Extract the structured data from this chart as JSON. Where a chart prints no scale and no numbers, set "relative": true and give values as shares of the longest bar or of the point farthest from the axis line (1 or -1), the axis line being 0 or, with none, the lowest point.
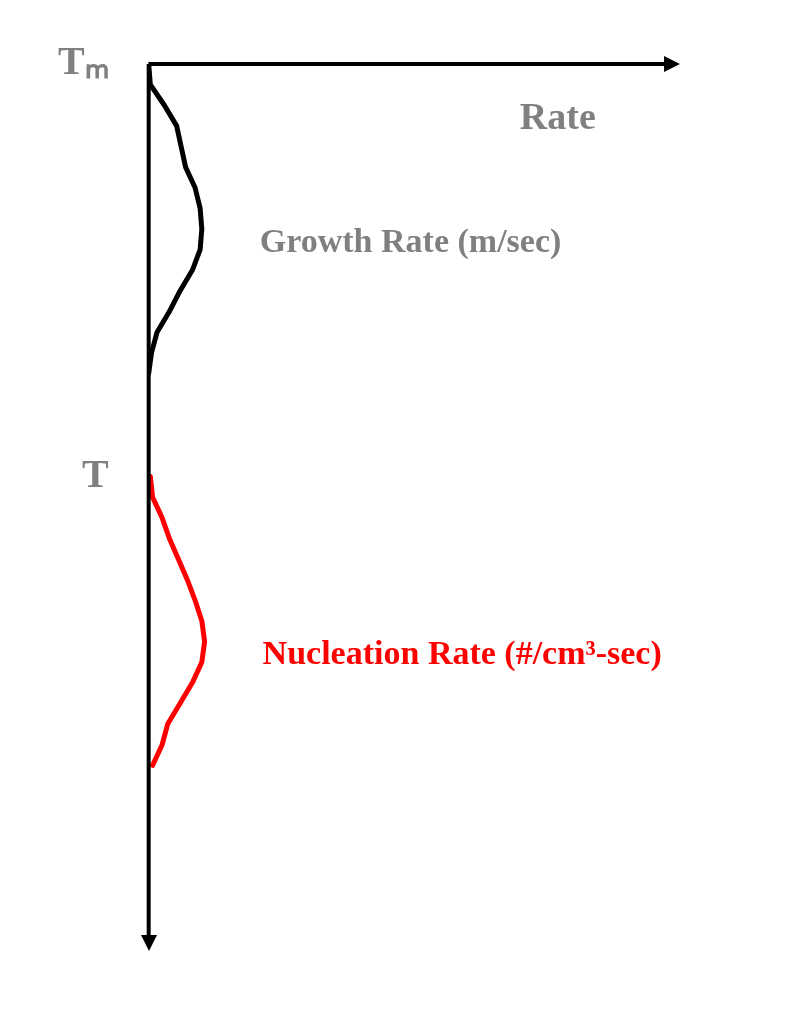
{
  "chart_data": {
    "type": "line",
    "orientation": "horizontal",
    "relative": true,
    "annotations": [
      "Rate"
    ],
    "grid": false,
    "legend": false,
    "marker": "none",
    "line_style": "solid",
    "categories": [
      "Tₘ",
      null,
      null,
      null,
      null,
      null,
      null,
      null,
      null,
      null,
      null,
      null,
      null,
      null,
      null,
      null,
      null,
      null,
      null,
      null,
      "T",
      null,
      null,
      null,
      null,
      null,
      null,
      null,
      null,
      null,
      null,
      null,
      null,
      null,
      null,
      null,
      null,
      null,
      null,
      null,
      null,
      null,
      null,
      null
    ],
    "series": [
      {
        "name": "Growth Rate (m/sec)",
        "color": "#000000",
        "values": [
          0,
          0.03,
          0.28,
          0.5,
          0.58,
          0.66,
          0.83,
          0.92,
          0.95,
          0.92,
          0.78,
          0.56,
          0.37,
          0.15,
          0.05,
          0,
          null,
          null,
          null,
          null,
          null,
          null,
          null,
          null,
          null,
          null,
          null,
          null,
          null,
          null,
          null,
          null,
          null,
          null,
          null,
          null,
          null,
          null,
          null,
          null,
          null,
          null,
          null,
          null
        ]
      },
      {
        "name": "Nucleation Rate (#/cm³-sec)",
        "color": "#ff0000",
        "values": [
          null,
          null,
          null,
          null,
          null,
          null,
          null,
          null,
          null,
          null,
          null,
          null,
          null,
          null,
          null,
          null,
          null,
          null,
          null,
          null,
          0.03,
          0.07,
          0.24,
          0.37,
          0.53,
          0.69,
          0.83,
          0.95,
          1,
          0.95,
          0.78,
          0.56,
          0.34,
          0.24,
          0.07,
          null,
          null,
          null,
          null,
          null,
          null,
          null,
          null,
          null
        ]
      }
    ]
  }
}
